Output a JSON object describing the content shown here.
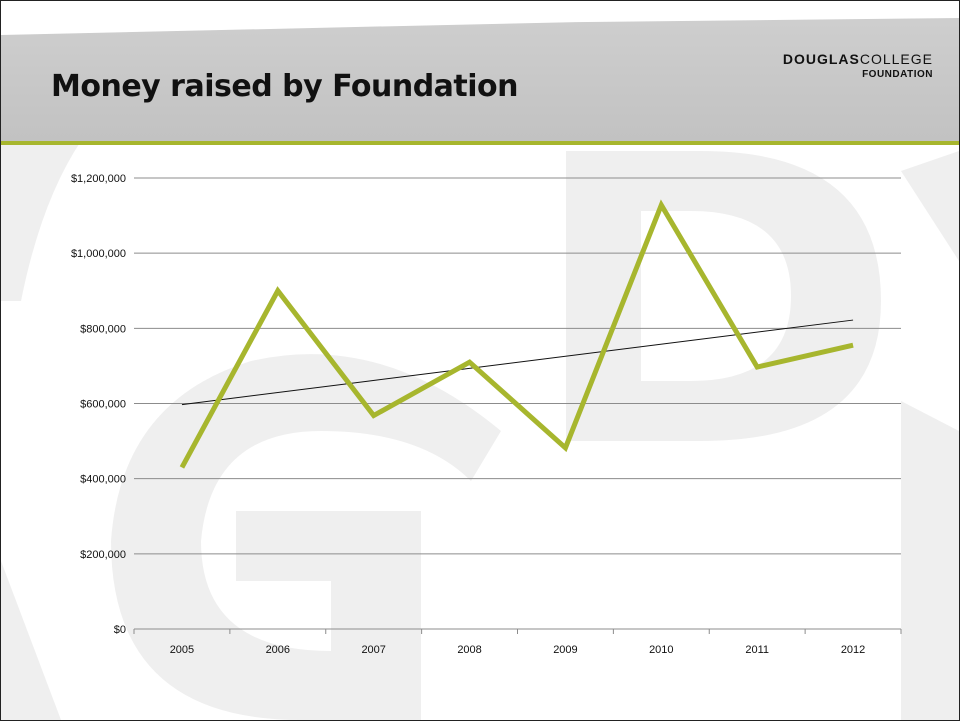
{
  "slide": {
    "title": "Money raised by Foundation",
    "logo": {
      "word1": "DOUGLAS",
      "word2": "COLLEGE",
      "line2": "FOUNDATION"
    }
  },
  "colors": {
    "series": "#a7b62e",
    "trendline": "#111111",
    "accent_rule": "#a7b62e",
    "header_bg": "#c8c8c8",
    "gridline": "#8c8c8c",
    "watermark": "#efefef"
  },
  "chart_data": {
    "type": "line",
    "categories": [
      "2005",
      "2006",
      "2007",
      "2008",
      "2009",
      "2010",
      "2011",
      "2012"
    ],
    "series": [
      {
        "values": [
          430000,
          900000,
          568000,
          710000,
          482000,
          1128000,
          697000,
          755000
        ]
      }
    ],
    "trendline": {
      "type": "linear",
      "from": 597000,
      "to": 822000
    },
    "ylim": [
      0,
      1200000
    ],
    "yticks": [
      {
        "value": 0,
        "label": "$0"
      },
      {
        "value": 200000,
        "label": "$200,000"
      },
      {
        "value": 400000,
        "label": "$400,000"
      },
      {
        "value": 600000,
        "label": "$600,000"
      },
      {
        "value": 800000,
        "label": "$800,000"
      },
      {
        "value": 1000000,
        "label": "$1,000,000"
      },
      {
        "value": 1200000,
        "label": "$1,200,000"
      }
    ],
    "grid": true,
    "legend": "none",
    "title": "",
    "xlabel": "",
    "ylabel": ""
  }
}
